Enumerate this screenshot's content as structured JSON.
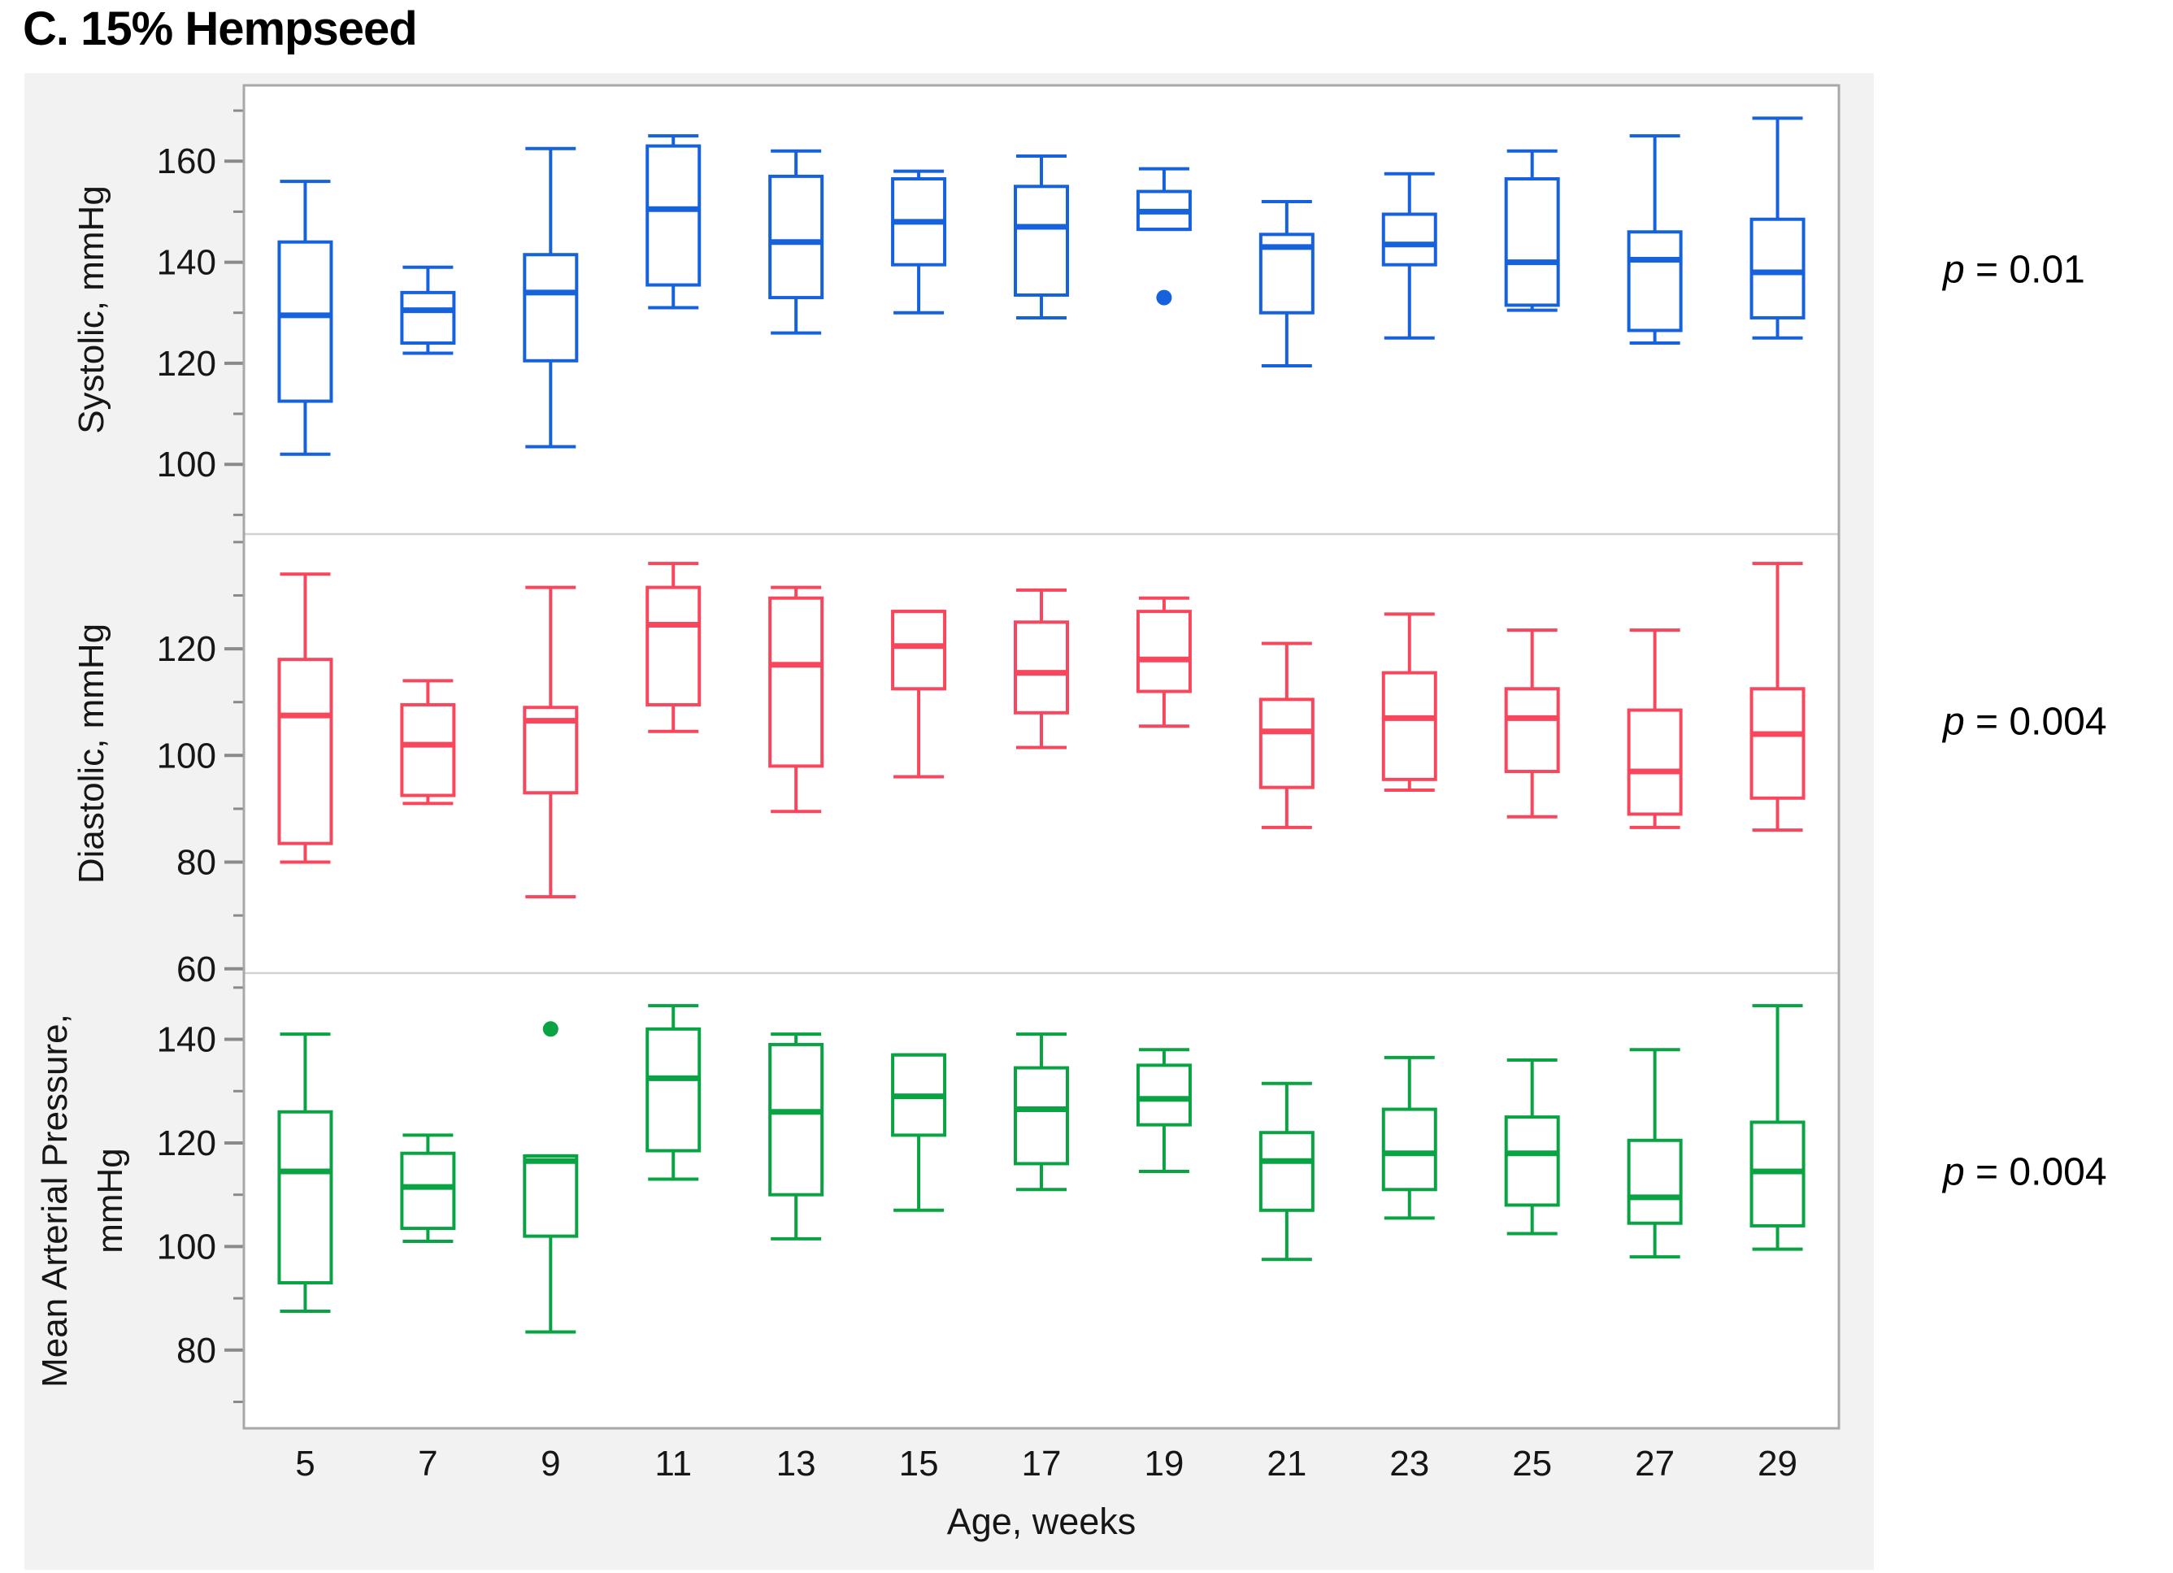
{
  "chart_data": {
    "type": "boxplot",
    "title": "C. 15% Hempseed",
    "x_axis": {
      "label": "Age, weeks",
      "categories": [
        "5",
        "7",
        "9",
        "11",
        "13",
        "15",
        "17",
        "19",
        "21",
        "23",
        "25",
        "27",
        "29"
      ]
    },
    "layout": {
      "grid": "off",
      "panels_stacked": 3,
      "p_labels_position": "right"
    },
    "colors": {
      "systolic": "#1661DC",
      "diastolic": "#F8475C",
      "map": "#0AA344",
      "figure_background": "#f2f2f2",
      "panel_background": "#ffffff",
      "panel_border": "#a8a8a8",
      "panel_separator": "#d2d2d2",
      "tick": "#8a8a8a",
      "text": "#161616"
    },
    "panels": [
      {
        "name": "Systolic",
        "ylabel_lines": [
          "Systolic, mmHg"
        ],
        "p_sym": "p",
        "p_rest": " = 0.01",
        "color": "#1661DC",
        "ylim": [
          86.2,
          175.0
        ],
        "yticks_major": [
          100,
          120,
          140,
          160
        ],
        "yticks_minor": [
          90,
          110,
          130,
          150,
          170
        ],
        "boxes": [
          {
            "week": "5",
            "low": 102,
            "q1": 112.5,
            "median": 129.5,
            "q3": 144,
            "high": 156,
            "outliers": []
          },
          {
            "week": "7",
            "low": 122,
            "q1": 124,
            "median": 130.5,
            "q3": 134,
            "high": 139,
            "outliers": []
          },
          {
            "week": "9",
            "low": 103.5,
            "q1": 120.5,
            "median": 134,
            "q3": 141.5,
            "high": 162.5,
            "outliers": []
          },
          {
            "week": "11",
            "low": 131,
            "q1": 135.5,
            "median": 150.5,
            "q3": 163,
            "high": 165,
            "outliers": []
          },
          {
            "week": "13",
            "low": 126,
            "q1": 133,
            "median": 144,
            "q3": 157,
            "high": 162,
            "outliers": []
          },
          {
            "week": "15",
            "low": 130,
            "q1": 139.5,
            "median": 148,
            "q3": 156.5,
            "high": 158,
            "outliers": []
          },
          {
            "week": "17",
            "low": 129,
            "q1": 133.5,
            "median": 147,
            "q3": 155,
            "high": 161,
            "outliers": []
          },
          {
            "week": "19",
            "low": 146.5,
            "q1": 146.5,
            "median": 150,
            "q3": 154,
            "high": 158.5,
            "outliers": [
              133
            ]
          },
          {
            "week": "21",
            "low": 119.5,
            "q1": 130,
            "median": 143,
            "q3": 145.5,
            "high": 152,
            "outliers": []
          },
          {
            "week": "23",
            "low": 125,
            "q1": 139.5,
            "median": 143.5,
            "q3": 149.5,
            "high": 157.5,
            "outliers": []
          },
          {
            "week": "25",
            "low": 130.5,
            "q1": 131.5,
            "median": 140,
            "q3": 156.5,
            "high": 162,
            "outliers": []
          },
          {
            "week": "27",
            "low": 124,
            "q1": 126.5,
            "median": 140.5,
            "q3": 146,
            "high": 165,
            "outliers": []
          },
          {
            "week": "29",
            "low": 125,
            "q1": 129,
            "median": 138,
            "q3": 148.5,
            "high": 168.5,
            "outliers": []
          }
        ]
      },
      {
        "name": "Diastolic",
        "ylabel_lines": [
          "Diastolic, mmHg"
        ],
        "p_sym": "p",
        "p_rest": " = 0.004",
        "color": "#F8475C",
        "ylim": [
          59.2,
          141.5
        ],
        "yticks_major": [
          60,
          80,
          100,
          120
        ],
        "yticks_minor": [
          70,
          90,
          110,
          130,
          140
        ],
        "boxes": [
          {
            "week": "5",
            "low": 80,
            "q1": 83.5,
            "median": 107.5,
            "q3": 118,
            "high": 134,
            "outliers": []
          },
          {
            "week": "7",
            "low": 91,
            "q1": 92.5,
            "median": 102,
            "q3": 109.5,
            "high": 114,
            "outliers": []
          },
          {
            "week": "9",
            "low": 73.5,
            "q1": 93,
            "median": 106.5,
            "q3": 109,
            "high": 131.5,
            "outliers": []
          },
          {
            "week": "11",
            "low": 104.5,
            "q1": 109.5,
            "median": 124.5,
            "q3": 131.5,
            "high": 136,
            "outliers": []
          },
          {
            "week": "13",
            "low": 89.5,
            "q1": 98,
            "median": 117,
            "q3": 129.5,
            "high": 131.5,
            "outliers": []
          },
          {
            "week": "15",
            "low": 96,
            "q1": 112.5,
            "median": 120.5,
            "q3": 127,
            "high": 127,
            "outliers": []
          },
          {
            "week": "17",
            "low": 101.5,
            "q1": 108,
            "median": 115.5,
            "q3": 125,
            "high": 131,
            "outliers": []
          },
          {
            "week": "19",
            "low": 105.5,
            "q1": 112,
            "median": 118,
            "q3": 127,
            "high": 129.5,
            "outliers": []
          },
          {
            "week": "21",
            "low": 86.5,
            "q1": 94,
            "median": 104.5,
            "q3": 110.5,
            "high": 121,
            "outliers": []
          },
          {
            "week": "23",
            "low": 93.5,
            "q1": 95.5,
            "median": 107,
            "q3": 115.5,
            "high": 126.5,
            "outliers": []
          },
          {
            "week": "25",
            "low": 88.5,
            "q1": 97,
            "median": 107,
            "q3": 112.5,
            "high": 123.5,
            "outliers": []
          },
          {
            "week": "27",
            "low": 86.5,
            "q1": 89,
            "median": 97,
            "q3": 108.5,
            "high": 123.5,
            "outliers": []
          },
          {
            "week": "29",
            "low": 86,
            "q1": 92,
            "median": 104,
            "q3": 112.5,
            "high": 136,
            "outliers": []
          }
        ]
      },
      {
        "name": "Mean Arterial Pressure",
        "ylabel_lines": [
          "Mean Arterial Pressure,",
          "mmHg"
        ],
        "p_sym": "p",
        "p_rest": " = 0.004",
        "color": "#0AA344",
        "ylim": [
          64.9,
          152.8
        ],
        "yticks_major": [
          80,
          100,
          120,
          140
        ],
        "yticks_minor": [
          70,
          90,
          110,
          130,
          150
        ],
        "boxes": [
          {
            "week": "5",
            "low": 87.5,
            "q1": 93,
            "median": 114.5,
            "q3": 126,
            "high": 141,
            "outliers": []
          },
          {
            "week": "7",
            "low": 101,
            "q1": 103.5,
            "median": 111.5,
            "q3": 118,
            "high": 121.5,
            "outliers": []
          },
          {
            "week": "9",
            "low": 83.5,
            "q1": 102,
            "median": 116.5,
            "q3": 117.5,
            "high": 117.5,
            "outliers": [
              142
            ]
          },
          {
            "week": "11",
            "low": 113,
            "q1": 118.5,
            "median": 132.5,
            "q3": 142,
            "high": 146.5,
            "outliers": []
          },
          {
            "week": "13",
            "low": 101.5,
            "q1": 110,
            "median": 126,
            "q3": 139,
            "high": 141,
            "outliers": []
          },
          {
            "week": "15",
            "low": 107,
            "q1": 121.5,
            "median": 129,
            "q3": 137,
            "high": 137,
            "outliers": []
          },
          {
            "week": "17",
            "low": 111,
            "q1": 116,
            "median": 126.5,
            "q3": 134.5,
            "high": 141,
            "outliers": []
          },
          {
            "week": "19",
            "low": 114.5,
            "q1": 123.5,
            "median": 128.5,
            "q3": 135,
            "high": 138,
            "outliers": []
          },
          {
            "week": "21",
            "low": 97.5,
            "q1": 107,
            "median": 116.5,
            "q3": 122,
            "high": 131.5,
            "outliers": []
          },
          {
            "week": "23",
            "low": 105.5,
            "q1": 111,
            "median": 118,
            "q3": 126.5,
            "high": 136.5,
            "outliers": []
          },
          {
            "week": "25",
            "low": 102.5,
            "q1": 108,
            "median": 118,
            "q3": 125,
            "high": 136,
            "outliers": []
          },
          {
            "week": "27",
            "low": 98,
            "q1": 104.5,
            "median": 109.5,
            "q3": 120.5,
            "high": 138,
            "outliers": []
          },
          {
            "week": "29",
            "low": 99.5,
            "q1": 104,
            "median": 114.5,
            "q3": 124,
            "high": 146.5,
            "outliers": []
          }
        ]
      }
    ]
  }
}
